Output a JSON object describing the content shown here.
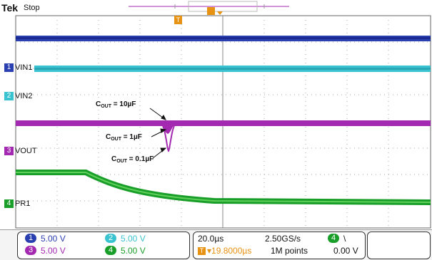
{
  "header": {
    "brand": "Tek",
    "status": "Stop"
  },
  "channels": {
    "ch1": {
      "label": "VIN1",
      "tag": "1",
      "color": "#2a3fb0"
    },
    "ch2": {
      "label": "VIN2",
      "tag": "2",
      "color": "#39c2d0"
    },
    "ch3": {
      "label": "VOUT",
      "tag": "3",
      "color": "#a32ab0"
    },
    "ch4": {
      "label": "PR1",
      "tag": "4",
      "color": "#1a9e2a"
    }
  },
  "annotations": [
    {
      "main": "C",
      "sub": "OUT",
      "rest": " = 10µF"
    },
    {
      "main": "C",
      "sub": "OUT",
      "rest": " = 1µF"
    },
    {
      "main": "C",
      "sub": "OUT",
      "rest": " = 0.1µF"
    }
  ],
  "scale": {
    "ch1": {
      "num": "1",
      "value": "5.00 V"
    },
    "ch2": {
      "num": "2",
      "value": "5.00 V"
    },
    "ch3": {
      "num": "3",
      "value": "5.00 V"
    },
    "ch4": {
      "num": "4",
      "value": "5.00 V"
    }
  },
  "timebase": {
    "time_div": "20.0µs",
    "trigger_pos": "▾19.8000µs",
    "sample_rate": "2.50GS/s",
    "record_length": "1M points"
  },
  "trigger": {
    "channel": "4",
    "slope": "\\",
    "level": "0.00 V"
  },
  "markers": {
    "trigger": "T"
  }
}
